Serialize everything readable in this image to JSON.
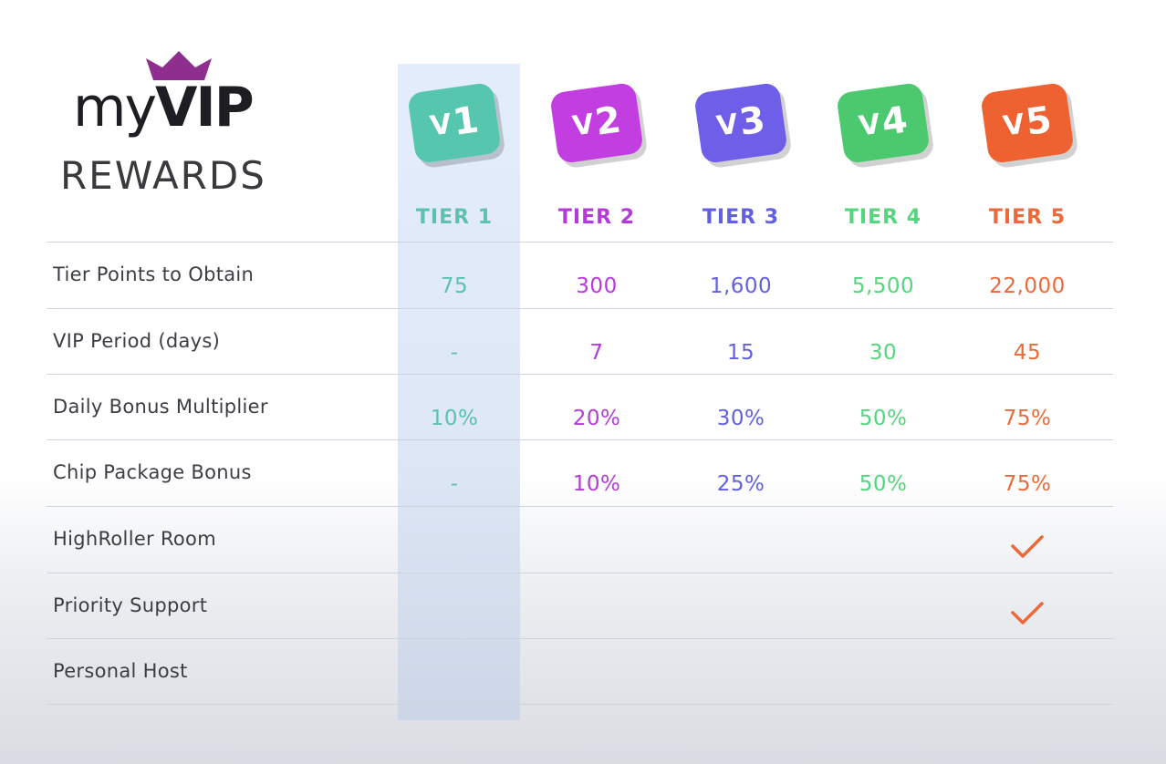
{
  "brand": {
    "my": "my",
    "vip": "VIP",
    "rewards": "REWARDS"
  },
  "tiers": [
    {
      "badge_v": "V",
      "badge_num": "1",
      "label": "TIER 1",
      "color": "#5cc2ad",
      "badge_color": "#56c7ae"
    },
    {
      "badge_v": "V",
      "badge_num": "2",
      "label": "TIER 2",
      "color": "#b43bd8",
      "badge_color": "#c23ee0"
    },
    {
      "badge_v": "V",
      "badge_num": "3",
      "label": "TIER 3",
      "color": "#6160e4",
      "badge_color": "#6f5fe8"
    },
    {
      "badge_v": "V",
      "badge_num": "4",
      "label": "TIER 4",
      "color": "#55d67e",
      "badge_color": "#4cc96f"
    },
    {
      "badge_v": "V",
      "badge_num": "5",
      "label": "TIER 5",
      "color": "#ec6a3a",
      "badge_color": "#ee6131"
    }
  ],
  "rows": [
    {
      "label": "Tier Points to Obtain",
      "values": [
        "75",
        "300",
        "1,600",
        "5,500",
        "22,000"
      ]
    },
    {
      "label": "VIP Period (days)",
      "values": [
        "-",
        "7",
        "15",
        "30",
        "45"
      ]
    },
    {
      "label": "Daily Bonus Multiplier",
      "values": [
        "10%",
        "20%",
        "30%",
        "50%",
        "75%"
      ]
    },
    {
      "label": "Chip Package Bonus",
      "values": [
        "-",
        "10%",
        "25%",
        "50%",
        "75%"
      ]
    },
    {
      "label": "HighRoller Room",
      "values": [
        "",
        "",
        "",
        "",
        "check"
      ]
    },
    {
      "label": "Priority Support",
      "values": [
        "",
        "",
        "",
        "",
        "check"
      ]
    },
    {
      "label": "Personal Host",
      "values": [
        "",
        "",
        "",
        "",
        ""
      ]
    }
  ]
}
